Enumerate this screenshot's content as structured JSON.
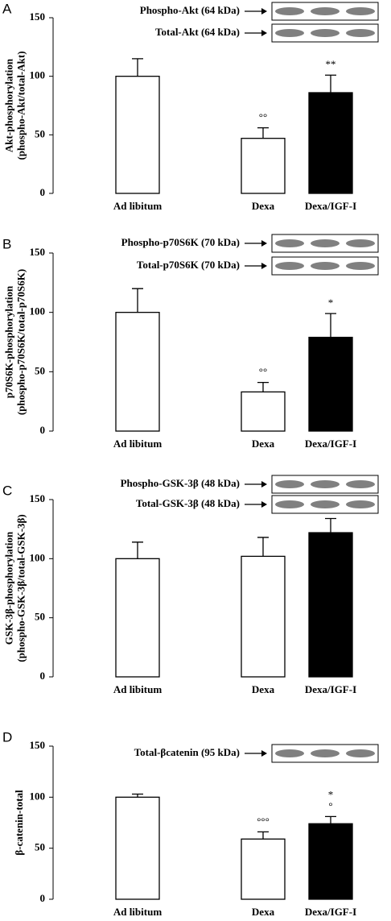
{
  "chart_data": [
    {
      "type": "bar",
      "panel": "A",
      "ylabel": [
        "Akt-phosphorylation",
        "(phospho-Akt/total-Akt)"
      ],
      "blots": [
        "Phospho-Akt (64 kDa)",
        "Total-Akt (64 kDa)"
      ],
      "categories": [
        "Ad libitum",
        "Dexa",
        "Dexa/IGF-I"
      ],
      "values": [
        100,
        47,
        86
      ],
      "errors": [
        15,
        9,
        15
      ],
      "colors": [
        "#ffffff",
        "#ffffff",
        "#000000"
      ],
      "annotations": [
        null,
        [
          "°°"
        ],
        [
          "**"
        ]
      ],
      "ylim": [
        0,
        150
      ],
      "yticks": [
        0,
        50,
        100,
        150
      ]
    },
    {
      "type": "bar",
      "panel": "B",
      "ylabel": [
        "p70S6K-phosphorylation",
        "(phospho-p70S6K/total-p70S6K)"
      ],
      "blots": [
        "Phospho-p70S6K (70 kDa)",
        "Total-p70S6K (70 kDa)"
      ],
      "categories": [
        "Ad libitum",
        "Dexa",
        "Dexa/IGF-I"
      ],
      "values": [
        100,
        33,
        79
      ],
      "errors": [
        20,
        8,
        20
      ],
      "colors": [
        "#ffffff",
        "#ffffff",
        "#000000"
      ],
      "annotations": [
        null,
        [
          "°°"
        ],
        [
          "*"
        ]
      ],
      "ylim": [
        0,
        150
      ],
      "yticks": [
        0,
        50,
        100,
        150
      ]
    },
    {
      "type": "bar",
      "panel": "C",
      "ylabel": [
        "GSK-3β-phosphorylation",
        "(phospho-GSK-3β/total-GSK-3β)"
      ],
      "blots": [
        "Phospho-GSK-3β (48 kDa)",
        "Total-GSK-3β (48 kDa)"
      ],
      "categories": [
        "Ad libitum",
        "Dexa",
        "Dexa/IGF-I"
      ],
      "values": [
        100,
        102,
        122
      ],
      "errors": [
        14,
        16,
        12
      ],
      "colors": [
        "#ffffff",
        "#ffffff",
        "#000000"
      ],
      "annotations": [
        null,
        null,
        null
      ],
      "ylim": [
        0,
        150
      ],
      "yticks": [
        0,
        50,
        100,
        150
      ]
    },
    {
      "type": "bar",
      "panel": "D",
      "ylabel": [
        "β-catenin-total"
      ],
      "blots": [
        "Total-βcatenin (95 kDa)"
      ],
      "categories": [
        "Ad libitum",
        "Dexa",
        "Dexa/IGF-I"
      ],
      "values": [
        100,
        59,
        74
      ],
      "errors": [
        3,
        7,
        7
      ],
      "colors": [
        "#ffffff",
        "#ffffff",
        "#000000"
      ],
      "annotations": [
        null,
        [
          "°°°"
        ],
        [
          "*",
          "°"
        ]
      ],
      "ylim": [
        0,
        150
      ],
      "yticks": [
        0,
        50,
        100,
        150
      ]
    }
  ]
}
